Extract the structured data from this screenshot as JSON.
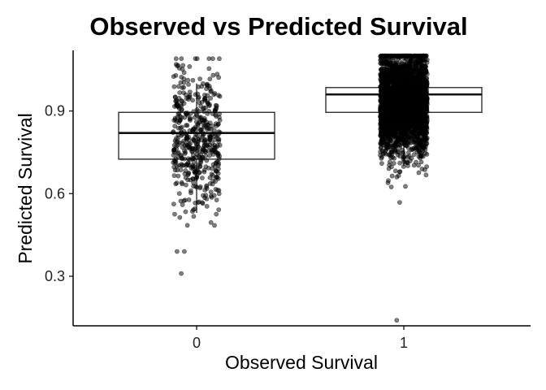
{
  "chart_data": {
    "type": "box",
    "title": "Observed vs Predicted Survival",
    "xlabel": "Observed Survival",
    "ylabel": "Predicted Survival",
    "categories": [
      "0",
      "1"
    ],
    "yticks": [
      0.3,
      0.6,
      0.9
    ],
    "ylim": [
      0.12,
      1.12
    ],
    "grid": false,
    "legend": "none",
    "overlay": "jittered points",
    "boxes": [
      {
        "category": "0",
        "whisker_low": 0.53,
        "q1": 0.725,
        "median": 0.82,
        "q3": 0.895,
        "whisker_high": 1.0
      },
      {
        "category": "1",
        "whisker_low": 0.7,
        "q1": 0.895,
        "median": 0.96,
        "q3": 0.985,
        "whisker_high": 1.0
      }
    ],
    "points_summary": [
      {
        "category": "0",
        "approx_count": 500,
        "min": 0.31,
        "max": 1.09
      },
      {
        "category": "1",
        "approx_count": 3000,
        "min": 0.14,
        "max": 1.1
      }
    ],
    "point_color": "#000000"
  }
}
